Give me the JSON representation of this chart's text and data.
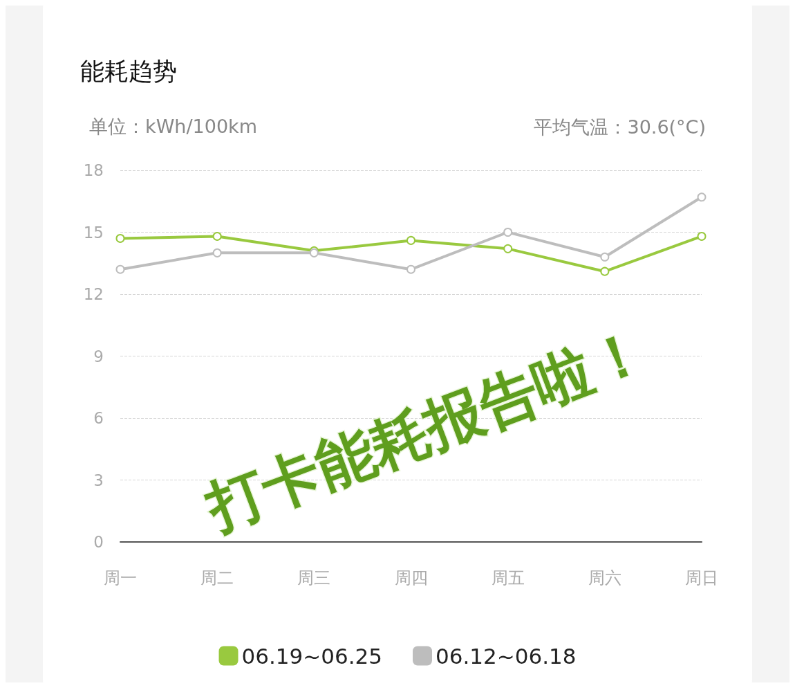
{
  "chart_data": {
    "type": "line",
    "title": "能耗趋势",
    "ylabel": "单位：kWh/100km",
    "annotations": [
      "平均气温：30.6(°C)",
      "打卡能耗报告啦！"
    ],
    "categories": [
      "周一",
      "周二",
      "周三",
      "周四",
      "周五",
      "周六",
      "周日"
    ],
    "series": [
      {
        "name": "06.19~06.25",
        "color": "#99c93f",
        "values": [
          14.7,
          14.8,
          14.1,
          14.6,
          14.2,
          13.1,
          14.8
        ]
      },
      {
        "name": "06.12~06.18",
        "color": "#bdbdbd",
        "values": [
          13.2,
          14.0,
          14.0,
          13.2,
          15.0,
          13.8,
          16.7
        ]
      }
    ],
    "ylim": [
      0,
      18
    ],
    "yticks": [
      0,
      3,
      6,
      9,
      12,
      15,
      18
    ],
    "grid": "y",
    "legend": "bottom",
    "marker": "circle",
    "line_style": "solid"
  }
}
